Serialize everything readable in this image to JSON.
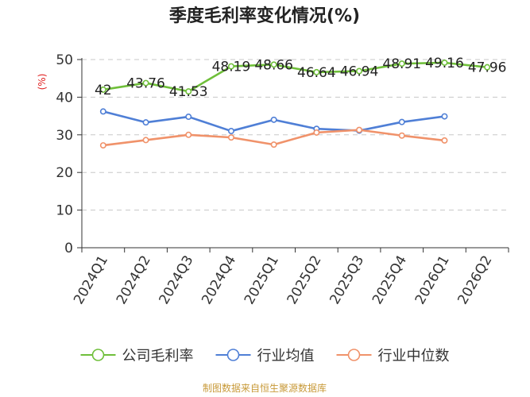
{
  "chart_data": {
    "type": "line",
    "title": "季度毛利率变化情况(%)",
    "ylabel": "(%)",
    "ylim": [
      0,
      50
    ],
    "yticks": [
      0,
      10,
      20,
      30,
      40,
      50
    ],
    "grid": true,
    "legend_position": "bottom",
    "categories": [
      "2024Q1",
      "2024Q2",
      "2024Q3",
      "2024Q4",
      "2025Q1",
      "2025Q2",
      "2025Q3",
      "2025Q4",
      "2026Q1",
      "2026Q2"
    ],
    "series": [
      {
        "name": "公司毛利率",
        "color": "#6fbf3a",
        "values": [
          42,
          43.76,
          41.53,
          48.19,
          48.66,
          46.64,
          46.94,
          48.91,
          49.16,
          47.96
        ],
        "labels": [
          "42",
          "43.76",
          "41.53",
          "48.19",
          "48.66",
          "46.64",
          "46.94",
          "48.91",
          "49.16",
          "47.96"
        ]
      },
      {
        "name": "行业均值",
        "color": "#4f7fd6",
        "values": [
          36.2,
          33.3,
          34.8,
          31.0,
          34.0,
          31.6,
          31.1,
          33.4,
          34.9,
          null
        ]
      },
      {
        "name": "行业中位数",
        "color": "#f0926a",
        "values": [
          27.2,
          28.6,
          30.0,
          29.3,
          27.4,
          30.6,
          31.3,
          29.8,
          28.5,
          null
        ]
      }
    ]
  },
  "source": "制图数据来自恒生聚源数据库"
}
